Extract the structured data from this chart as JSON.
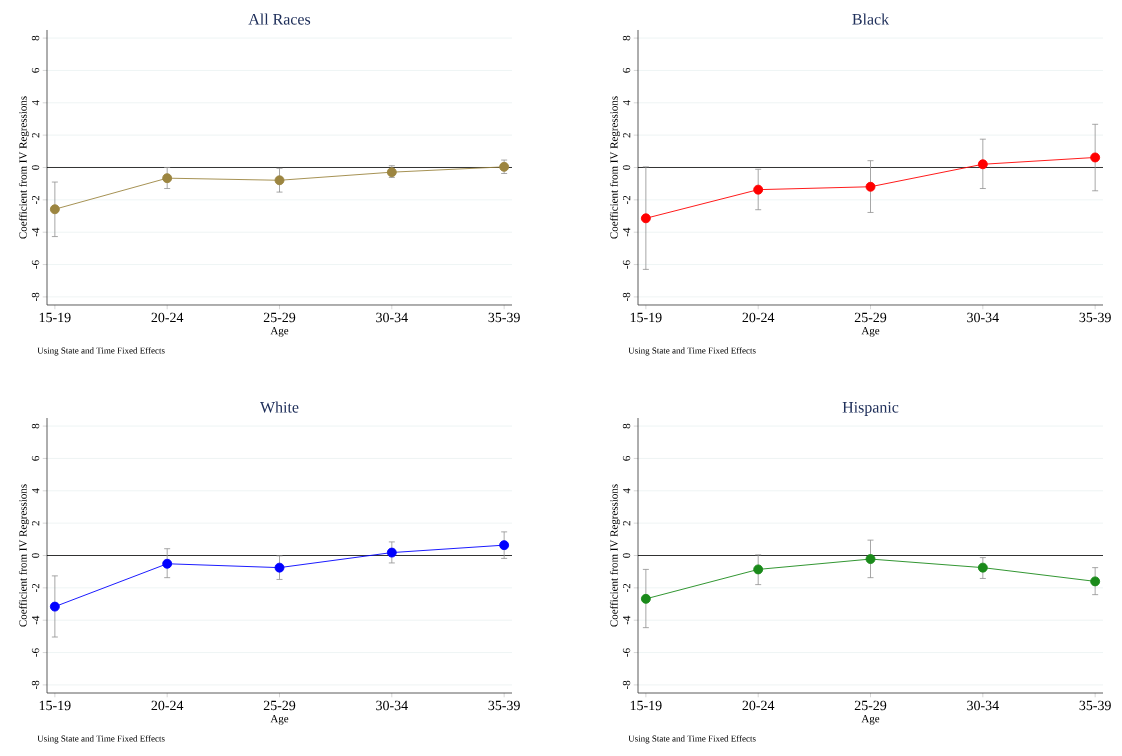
{
  "chart_data": [
    {
      "type": "line",
      "title": "All Races",
      "xlabel": "Age",
      "ylabel": "Coefficient from IV Regressions",
      "categories": [
        "15-19",
        "20-24",
        "25-29",
        "30-34",
        "35-39"
      ],
      "ylim": [
        -8.5,
        8.5
      ],
      "yticks": [
        -8,
        -6,
        -4,
        -2,
        0,
        2,
        4,
        6,
        8
      ],
      "grid": "y",
      "marker": "circle",
      "ref_lines": [
        {
          "axis": "y",
          "value": 0,
          "color": "#000000"
        }
      ],
      "annotations": [
        "Using State and Time Fixed Effects"
      ],
      "series": [
        {
          "color": "#9c8540",
          "values": [
            -2.58,
            -0.66,
            -0.79,
            -0.29,
            0.04
          ],
          "errors": [
            [
              -4.27,
              -0.9
            ],
            [
              -1.3,
              0.0
            ],
            [
              -1.52,
              -0.05
            ],
            [
              -0.62,
              0.11
            ],
            [
              -0.37,
              0.46
            ]
          ]
        }
      ]
    },
    {
      "type": "line",
      "title": "Black",
      "xlabel": "Age",
      "ylabel": "Coefficient from IV Regressions",
      "categories": [
        "15-19",
        "20-24",
        "25-29",
        "30-34",
        "35-39"
      ],
      "ylim": [
        -8.5,
        8.5
      ],
      "yticks": [
        -8,
        -6,
        -4,
        -2,
        0,
        2,
        4,
        6,
        8
      ],
      "grid": "y",
      "marker": "circle",
      "ref_lines": [
        {
          "axis": "y",
          "value": 0,
          "color": "#000000"
        }
      ],
      "annotations": [
        "Using State and Time Fixed Effects"
      ],
      "series": [
        {
          "color": "#ff0000",
          "values": [
            -3.14,
            -1.37,
            -1.19,
            0.2,
            0.62
          ],
          "errors": [
            [
              -6.3,
              0.04
            ],
            [
              -2.61,
              -0.11
            ],
            [
              -2.78,
              0.42
            ],
            [
              -1.3,
              1.75
            ],
            [
              -1.44,
              2.67
            ]
          ]
        }
      ]
    },
    {
      "type": "line",
      "title": "White",
      "xlabel": "Age",
      "ylabel": "Coefficient from IV Regressions",
      "categories": [
        "15-19",
        "20-24",
        "25-29",
        "30-34",
        "35-39"
      ],
      "ylim": [
        -8.5,
        8.5
      ],
      "yticks": [
        -8,
        -6,
        -4,
        -2,
        0,
        2,
        4,
        6,
        8
      ],
      "grid": "y",
      "marker": "circle",
      "ref_lines": [
        {
          "axis": "y",
          "value": 0,
          "color": "#000000"
        }
      ],
      "annotations": [
        "Using State and Time Fixed Effects"
      ],
      "series": [
        {
          "color": "#0000ff",
          "values": [
            -3.16,
            -0.51,
            -0.75,
            0.18,
            0.64
          ],
          "errors": [
            [
              -5.04,
              -1.26
            ],
            [
              -1.37,
              0.42
            ],
            [
              -1.48,
              -0.02
            ],
            [
              -0.46,
              0.84
            ],
            [
              -0.18,
              1.46
            ]
          ]
        }
      ]
    },
    {
      "type": "line",
      "title": "Hispanic",
      "xlabel": "Age",
      "ylabel": "Coefficient from IV Regressions",
      "categories": [
        "15-19",
        "20-24",
        "25-29",
        "30-34",
        "35-39"
      ],
      "ylim": [
        -8.5,
        8.5
      ],
      "yticks": [
        -8,
        -6,
        -4,
        -2,
        0,
        2,
        4,
        6,
        8
      ],
      "grid": "y",
      "marker": "circle",
      "ref_lines": [
        {
          "axis": "y",
          "value": 0,
          "color": "#000000"
        }
      ],
      "annotations": [
        "Using State and Time Fixed Effects"
      ],
      "series": [
        {
          "color": "#1a8a1a",
          "values": [
            -2.68,
            -0.86,
            -0.22,
            -0.75,
            -1.6
          ],
          "errors": [
            [
              -4.46,
              -0.86
            ],
            [
              -1.8,
              0.04
            ],
            [
              -1.37,
              0.95
            ],
            [
              -1.42,
              -0.13
            ],
            [
              -2.42,
              -0.75
            ]
          ]
        }
      ]
    }
  ]
}
